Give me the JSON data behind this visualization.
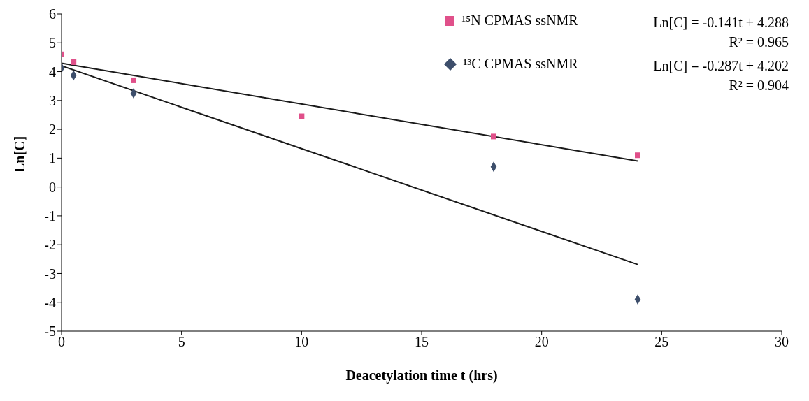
{
  "chart_data": {
    "type": "scatter",
    "xlabel": "Deacetylation time t (hrs)",
    "ylabel": "Ln[C]",
    "xlim": [
      0,
      30
    ],
    "xticks": [
      0,
      5,
      10,
      15,
      20,
      25,
      30
    ],
    "ylim": [
      -5,
      6
    ],
    "yticks": [
      -5,
      -4,
      -3,
      -2,
      -1,
      0,
      1,
      2,
      3,
      4,
      5,
      6
    ],
    "grid": false,
    "legend": "top right",
    "series": [
      {
        "name": "¹⁵N CPMAS ssNMR",
        "marker": "square",
        "color": "#e0508a",
        "x": [
          0,
          0.5,
          3,
          10,
          18,
          24
        ],
        "values": [
          4.6,
          4.33,
          3.7,
          2.45,
          1.75,
          1.1
        ]
      },
      {
        "name": "¹³C CPMAS ssNMR",
        "marker": "diamond",
        "color": "#3d4e6b",
        "x": [
          0,
          0.5,
          3,
          18,
          24
        ],
        "values": [
          4.13,
          3.87,
          3.25,
          0.7,
          -3.9
        ]
      },
      {
        "type": "line",
        "color": "#1a1a1a",
        "x": [
          0,
          24
        ],
        "values": [
          4.29,
          0.9
        ]
      },
      {
        "type": "line",
        "color": "#1a1a1a",
        "x": [
          0,
          24
        ],
        "values": [
          4.2,
          -2.69
        ]
      }
    ],
    "annotations": [
      "Ln[C] = -0.141t + 4.288",
      "R² = 0.965",
      "Ln[C] = -0.287t + 4.202",
      "R² = 0.904"
    ]
  }
}
